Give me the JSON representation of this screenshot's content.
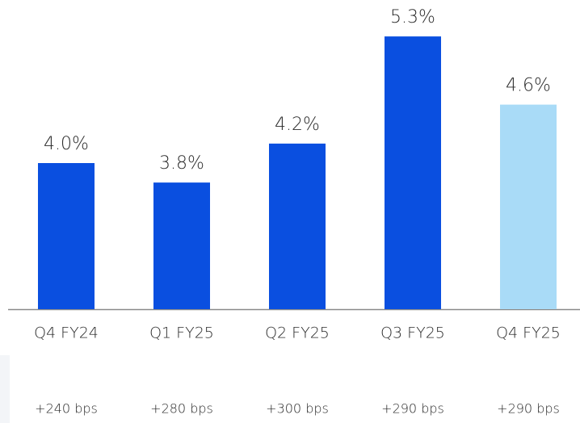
{
  "chart_data": {
    "type": "bar",
    "categories": [
      "Q4 FY24",
      "Q1 FY25",
      "Q2 FY25",
      "Q3 FY25",
      "Q4 FY25"
    ],
    "values": [
      4.0,
      3.8,
      4.2,
      5.3,
      4.6
    ],
    "value_labels": [
      "4.0%",
      "3.8%",
      "4.2%",
      "5.3%",
      "4.6%"
    ],
    "colors": [
      "#0a4fe0",
      "#0a4fe0",
      "#0a4fe0",
      "#0a4fe0",
      "#a9dbf7"
    ],
    "annotations": [
      "+240 bps",
      "+280 bps",
      "+300 bps",
      "+290 bps",
      "+290 bps"
    ],
    "ylim": [
      2.5,
      5.5
    ]
  }
}
